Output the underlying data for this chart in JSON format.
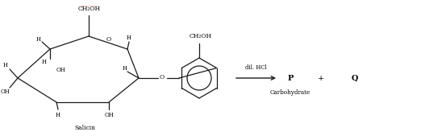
{
  "bg_color": "#ffffff",
  "line_color": "#1a1a1a",
  "text_color": "#000000",
  "red_color": "#cc0000",
  "figsize": [
    5.27,
    1.69
  ],
  "dpi": 100,
  "title_text": "Salicin",
  "reagent": "dil. HCl",
  "product1": "P",
  "product2": "Q",
  "sub_label": "Carbohydrate",
  "plus_sign": "+",
  "wavy_annotation": "............"
}
